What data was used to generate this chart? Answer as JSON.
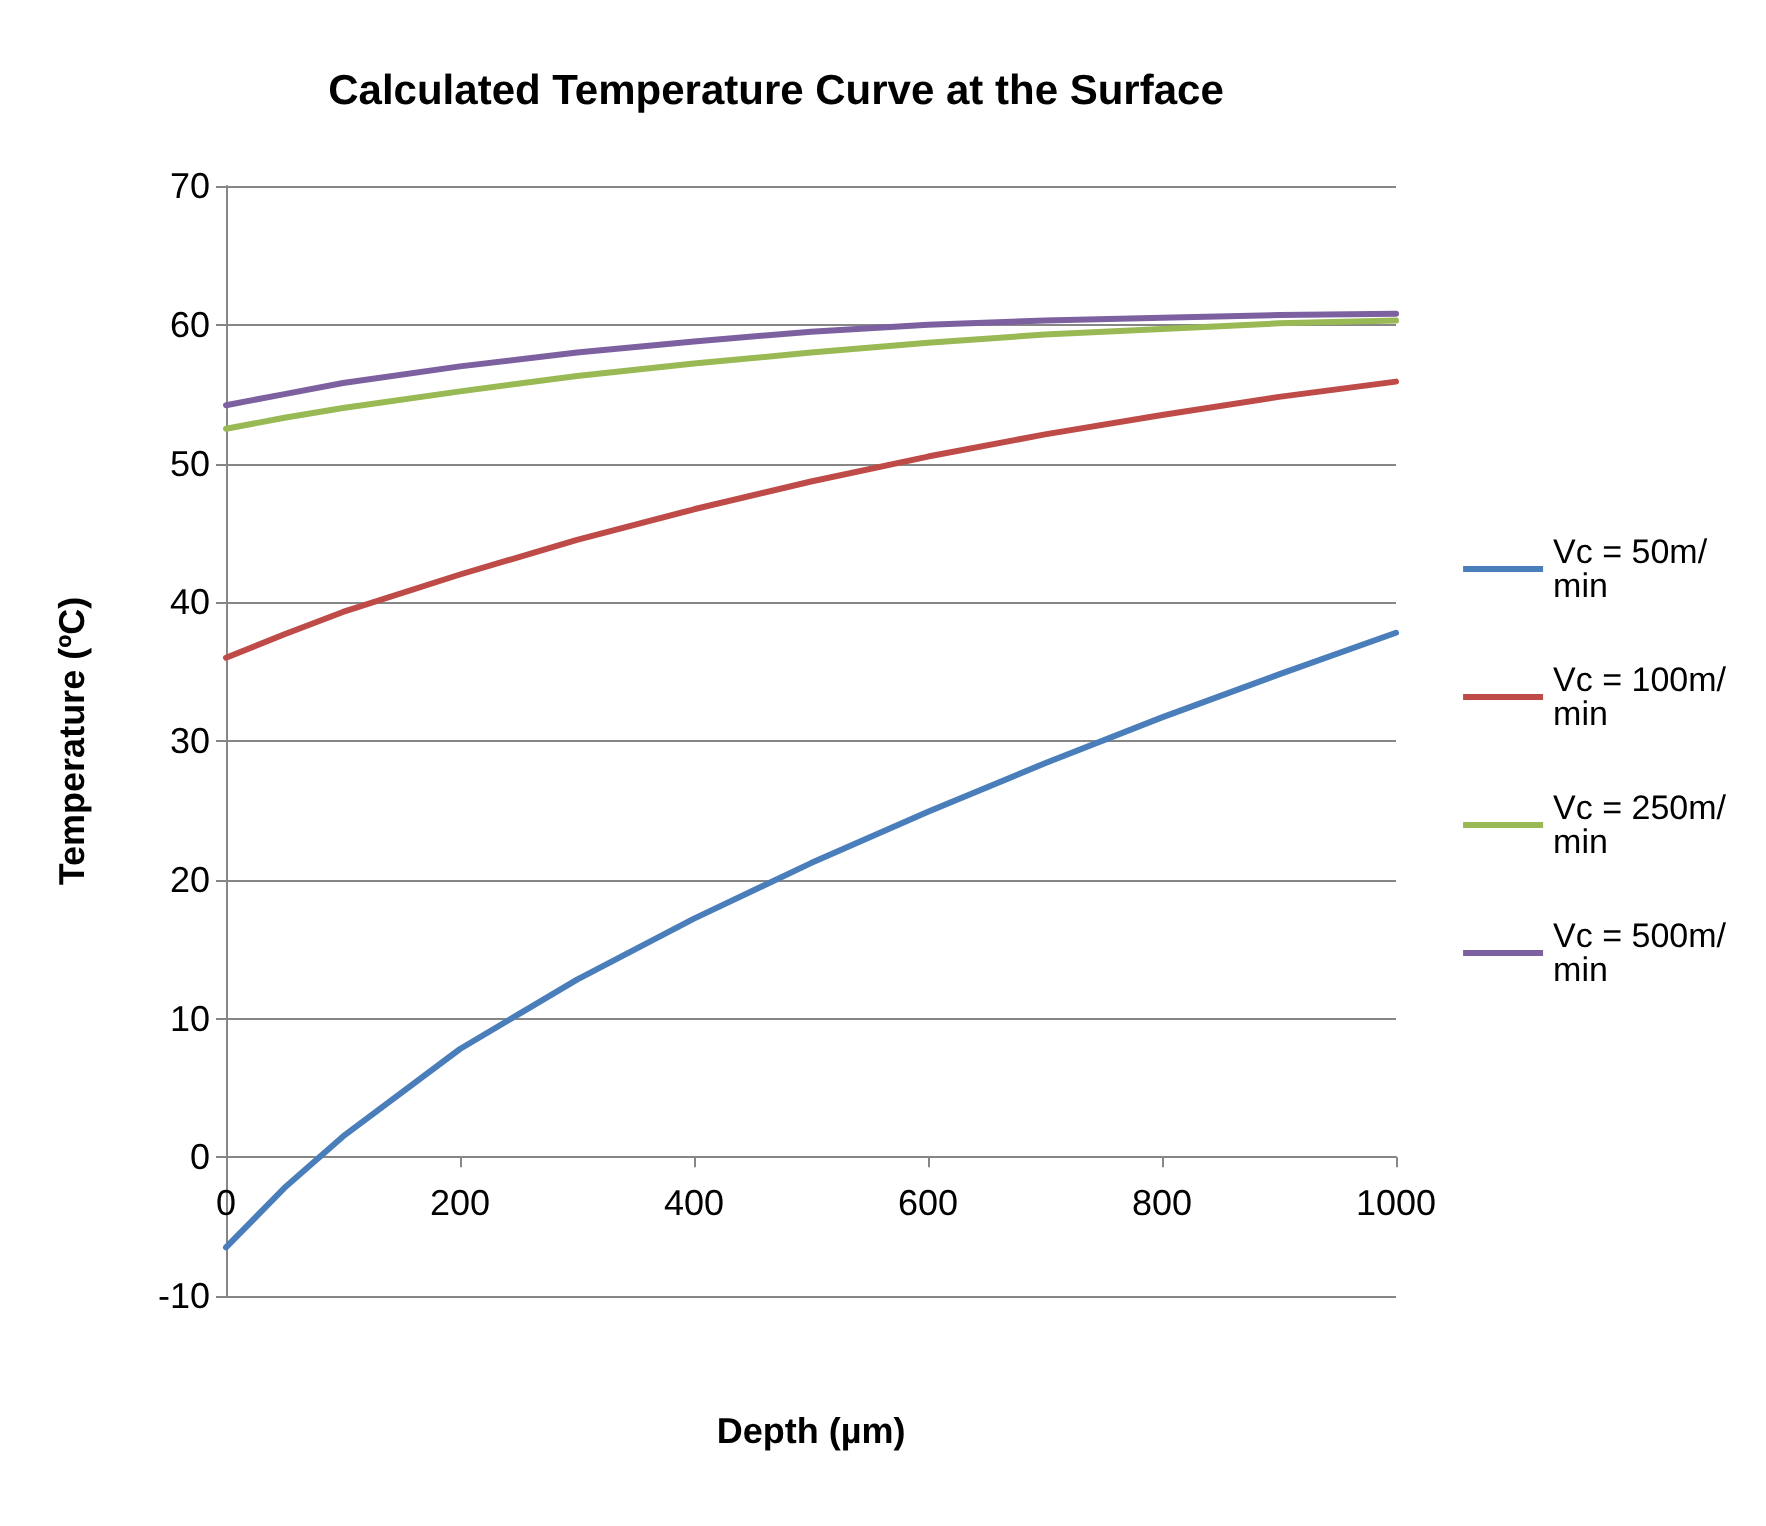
{
  "chart_data": {
    "type": "line",
    "title": "Calculated Temperature Curve at the Surface",
    "xlabel": "Depth (µm)",
    "ylabel": "Temperature (ºC)",
    "x": [
      0,
      50,
      100,
      200,
      300,
      400,
      500,
      600,
      700,
      800,
      900,
      1000
    ],
    "series": [
      {
        "name": "Vc = 50m/min",
        "color": "#4a7ebb",
        "values": [
          -6.5,
          -2.2,
          1.5,
          7.8,
          12.8,
          17.2,
          21.2,
          24.9,
          28.4,
          31.7,
          34.8,
          37.8
        ]
      },
      {
        "name": "Vc = 100m/min",
        "color": "#be4b48",
        "values": [
          36,
          37.7,
          39.3,
          42,
          44.5,
          46.7,
          48.7,
          50.5,
          52.1,
          53.5,
          54.8,
          55.9
        ]
      },
      {
        "name": "Vc = 250m/min",
        "color": "#98b954",
        "values": [
          52.5,
          53.3,
          54,
          55.2,
          56.3,
          57.2,
          58,
          58.7,
          59.3,
          59.7,
          60.1,
          60.3
        ]
      },
      {
        "name": "Vc = 500m/min",
        "color": "#7d60a0",
        "values": [
          54.2,
          55,
          55.8,
          57,
          58,
          58.8,
          59.5,
          60,
          60.3,
          60.5,
          60.7,
          60.8
        ]
      }
    ],
    "xlim": [
      0,
      1000
    ],
    "xticks": [
      0,
      200,
      400,
      600,
      800,
      1000
    ],
    "ylim": [
      -10,
      70
    ],
    "yticks": [
      -10,
      0,
      10,
      20,
      30,
      40,
      50,
      60,
      70
    ],
    "grid": "y",
    "legend": "right",
    "marker": "none",
    "line_style": "solid"
  }
}
